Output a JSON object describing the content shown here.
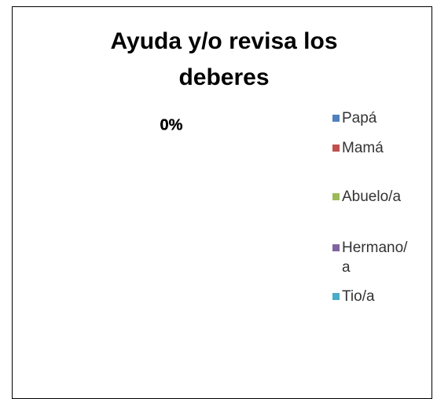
{
  "chart_data": {
    "type": "pie",
    "title": "Ayuda y/o revisa los deberes",
    "categories": [
      "Papá",
      "Mamá",
      "Abuelo/a",
      "Hermano/a",
      "Tio/a"
    ],
    "values": [
      0,
      0,
      0,
      0,
      0
    ],
    "value_labels": [
      "0%",
      "0%",
      "0%",
      "0%",
      "0%"
    ],
    "colors": [
      "#4f81bd",
      "#c0504d",
      "#9bbb59",
      "#8064a2",
      "#4bacc6"
    ],
    "legend": "right"
  }
}
